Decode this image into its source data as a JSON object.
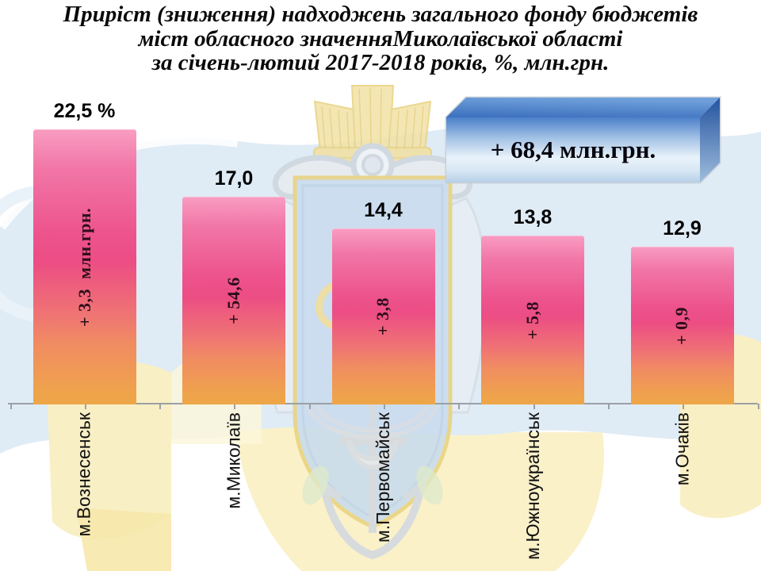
{
  "title": {
    "lines": [
      "Приріст (зниження)  надходжень  загального фонду бюджетів",
      "міст обласного значенняМиколаївської області",
      "за січень-лютий 2017-2018 років, %, млн.грн."
    ]
  },
  "callout": {
    "text": "+ 68,4 млн.грн."
  },
  "watermark": {
    "name": "coat-of-arms-mykolaiv-watermark"
  },
  "colors": {
    "bar_top": "#f99dc2",
    "bar_mid": "#ec4d84",
    "bar_bottom": "#efa44b",
    "box_front_top": "#4b80c9",
    "box_front_bottom": "#b6cfe7",
    "box_top_face": "#3a6fbd",
    "box_side_face": "#24549f",
    "axis": "#9aa0a6",
    "background_blue": "#dbe9f4",
    "background_yellow": "#f9efc5"
  },
  "chart_data": {
    "type": "bar",
    "title": "Приріст (зниження) надходжень загального фонду бюджетів міст обласного значення Миколаївської області за січень-лютий 2017-2018 років, %, млн.грн.",
    "categories": [
      "м.Вознесенськ",
      "м.Миколаїв",
      "м.Первомайськ",
      "м.Южноукраїнськ",
      "м.Очаків"
    ],
    "values": [
      22.5,
      17.0,
      14.4,
      13.8,
      12.9
    ],
    "value_labels": [
      "22,5 %",
      "17,0",
      "14,4",
      "13,8",
      "12,9"
    ],
    "bar_inner_labels": [
      "+ 3,3  млн.грн.",
      "+ 54,6",
      "+ 3,8",
      "+ 5,8",
      "+ 0,9"
    ],
    "annotation": "+ 68,4 млн.грн.",
    "xlabel": "",
    "ylabel": "",
    "ylim": [
      0,
      24
    ],
    "grid": false,
    "legend": false,
    "units": "%, млн.грн."
  }
}
